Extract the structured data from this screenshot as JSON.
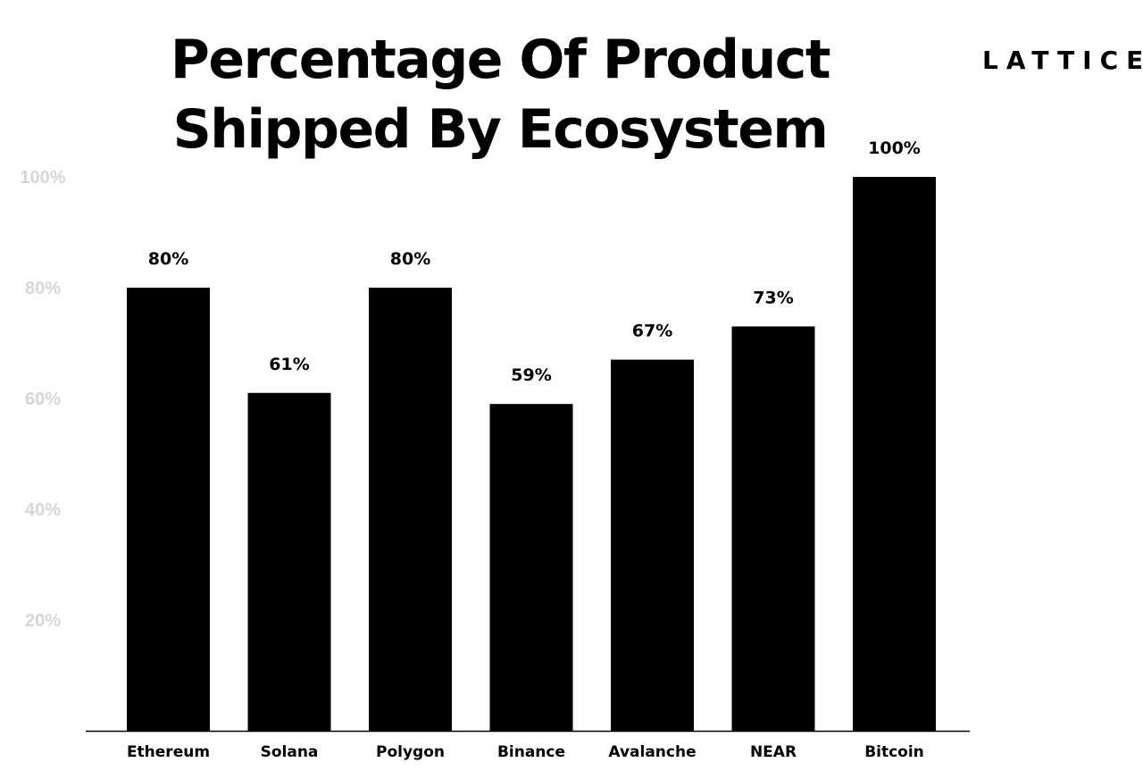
{
  "header": {
    "brand": "LATTICE"
  },
  "chart_data": {
    "type": "bar",
    "title_lines": [
      "Percentage Of Product",
      "Shipped By Ecosystem"
    ],
    "categories": [
      "Ethereum",
      "Solana",
      "Polygon",
      "Binance",
      "Avalanche",
      "NEAR",
      "Bitcoin"
    ],
    "values": [
      80,
      61,
      80,
      59,
      67,
      73,
      100
    ],
    "value_labels": [
      "80%",
      "61%",
      "80%",
      "59%",
      "67%",
      "73%",
      "100%"
    ],
    "y_ticks": [
      20,
      40,
      60,
      80,
      100
    ],
    "y_tick_labels": [
      "20%",
      "40%",
      "60%",
      "80%",
      "100%"
    ],
    "ylim": [
      0,
      100
    ],
    "xlabel": "",
    "ylabel": "",
    "grid": false,
    "colors": {
      "bar": "#000000",
      "value_label": "#000000",
      "y_tick_label": "#d6d6d6",
      "x_tick_label": "#000000",
      "axis": "#000000"
    }
  }
}
